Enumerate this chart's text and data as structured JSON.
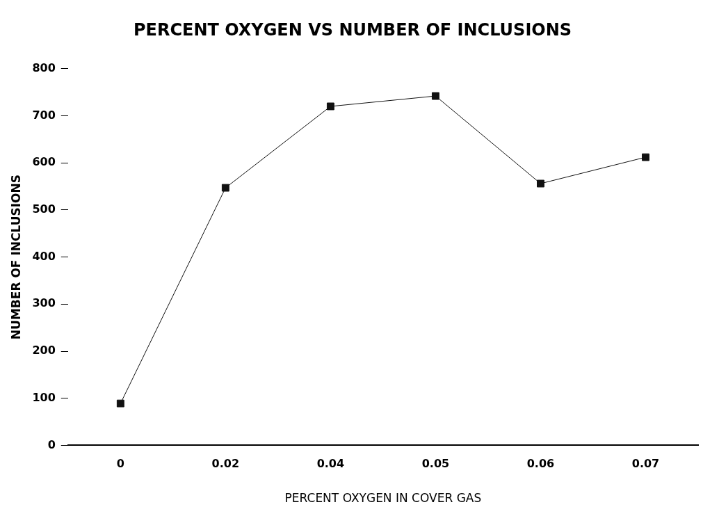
{
  "chart_data": {
    "type": "line",
    "title": "PERCENT OXYGEN VS NUMBER OF INCLUSIONS",
    "xlabel": "PERCENT OXYGEN IN COVER GAS",
    "ylabel": "NUMBER OF INCLUSIONS",
    "categories": [
      "0",
      "0.02",
      "0.04",
      "0.05",
      "0.06",
      "0.07"
    ],
    "series": [
      {
        "color": "#111111",
        "values": [
          89,
          547,
          720,
          742,
          556,
          612
        ]
      }
    ],
    "ylim": [
      0,
      800
    ],
    "yticks": [
      0,
      100,
      200,
      300,
      400,
      500,
      600,
      700,
      800
    ],
    "grid": false,
    "legend": false,
    "marker": "square",
    "line_style": "solid"
  }
}
